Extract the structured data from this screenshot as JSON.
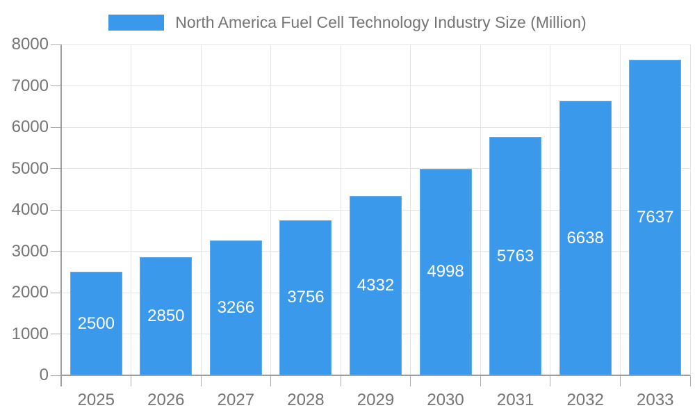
{
  "chart_data": {
    "type": "bar",
    "title": "North America Fuel Cell Technology Industry Size (Million)",
    "legend_label": "North America Fuel Cell Technology Industry Size (Million)",
    "legend_position": "top",
    "categories": [
      "2025",
      "2026",
      "2027",
      "2028",
      "2029",
      "2030",
      "2031",
      "2032",
      "2033"
    ],
    "values": [
      2500,
      2850,
      3266,
      3756,
      4332,
      4998,
      5763,
      6638,
      7637
    ],
    "data_labels": [
      "2500",
      "2850",
      "3266",
      "3756",
      "4332",
      "4998",
      "5763",
      "6638",
      "7637"
    ],
    "xlabel": "",
    "ylabel": "",
    "ylim": [
      0,
      8000
    ],
    "ytick_step": 1000,
    "ytick_labels": [
      "0",
      "1000",
      "2000",
      "3000",
      "4000",
      "5000",
      "6000",
      "7000",
      "8000"
    ],
    "grid": true,
    "colors": {
      "bar_fill": "#3B99EC",
      "bar_border": "#62ACF0",
      "data_label": "#ffffff",
      "axis_text": "#757575",
      "axis_line": "#9E9E9E",
      "gridline": "#E4E4E4",
      "background": "#ffffff"
    }
  }
}
